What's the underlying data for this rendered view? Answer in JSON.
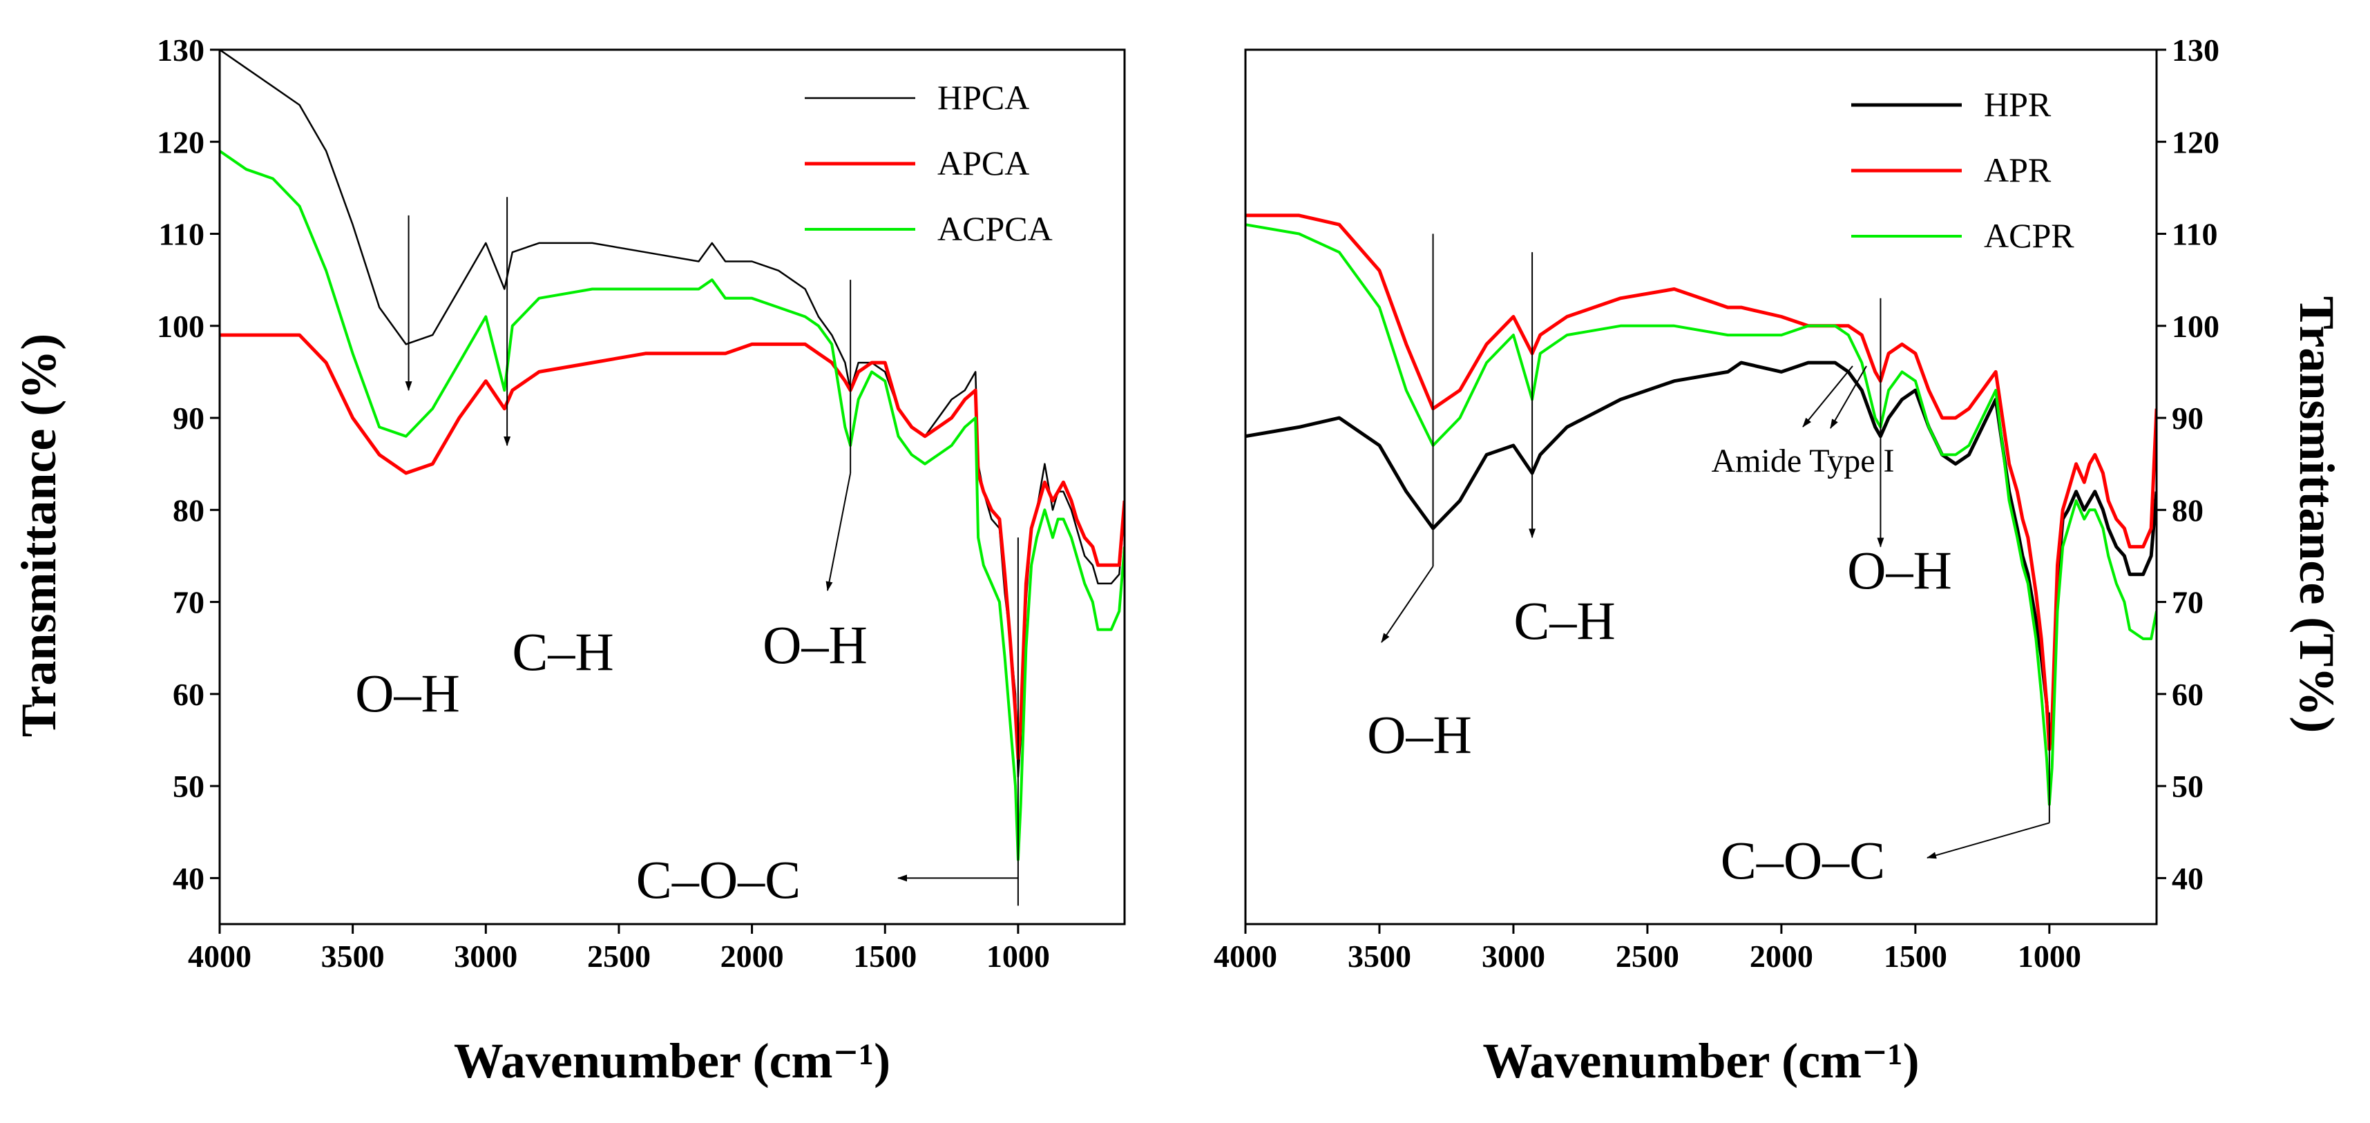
{
  "chart_data": [
    {
      "type": "line",
      "panel": "left",
      "title": "",
      "xlabel": "Wavenumber (cm⁻¹)",
      "ylabel": "Transmittance (%)",
      "xlim": [
        4000,
        600
      ],
      "ylim": [
        35,
        130
      ],
      "xticks": [
        "4000",
        "3500",
        "3000",
        "2500",
        "2000",
        "1500",
        "1000"
      ],
      "xtick_values": [
        4000,
        3500,
        3000,
        2500,
        2000,
        1500,
        1000
      ],
      "yticks": [
        "40",
        "50",
        "60",
        "70",
        "80",
        "90",
        "100",
        "110",
        "120",
        "130"
      ],
      "ytick_values": [
        40,
        50,
        60,
        70,
        80,
        90,
        100,
        110,
        120,
        130
      ],
      "legend_position": "top-right",
      "series": [
        {
          "name": "HPCA",
          "color": "#000000",
          "x": [
            4000,
            3900,
            3800,
            3700,
            3600,
            3500,
            3400,
            3300,
            3200,
            3100,
            3000,
            2930,
            2900,
            2800,
            2600,
            2400,
            2200,
            2150,
            2100,
            2000,
            1900,
            1800,
            1750,
            1700,
            1650,
            1630,
            1600,
            1550,
            1500,
            1450,
            1400,
            1350,
            1300,
            1250,
            1200,
            1160,
            1150,
            1130,
            1100,
            1070,
            1050,
            1030,
            1010,
            1000,
            990,
            970,
            950,
            930,
            900,
            870,
            850,
            830,
            800,
            780,
            750,
            720,
            700,
            650,
            620,
            600
          ],
          "values": [
            130,
            128,
            126,
            124,
            119,
            111,
            102,
            98,
            99,
            104,
            109,
            104,
            108,
            109,
            109,
            108,
            107,
            109,
            107,
            107,
            106,
            104,
            101,
            99,
            96,
            93,
            96,
            96,
            95,
            91,
            89,
            88,
            90,
            92,
            93,
            95,
            85,
            82,
            79,
            78,
            71,
            66,
            60,
            51,
            55,
            70,
            78,
            80,
            85,
            80,
            82,
            82,
            80,
            78,
            75,
            74,
            72,
            72,
            73,
            80
          ]
        },
        {
          "name": "APCA",
          "color": "#ff0000",
          "x": [
            4000,
            3900,
            3800,
            3700,
            3600,
            3500,
            3400,
            3300,
            3200,
            3100,
            3000,
            2930,
            2900,
            2800,
            2600,
            2400,
            2200,
            2150,
            2100,
            2000,
            1900,
            1800,
            1750,
            1700,
            1650,
            1630,
            1600,
            1550,
            1500,
            1450,
            1400,
            1350,
            1300,
            1250,
            1200,
            1160,
            1150,
            1130,
            1100,
            1070,
            1050,
            1030,
            1010,
            1000,
            990,
            970,
            950,
            930,
            900,
            870,
            850,
            830,
            800,
            780,
            750,
            720,
            700,
            650,
            620,
            600
          ],
          "values": [
            99,
            99,
            99,
            99,
            96,
            90,
            86,
            84,
            85,
            90,
            94,
            91,
            93,
            95,
            96,
            97,
            97,
            97,
            97,
            98,
            98,
            98,
            97,
            96,
            94,
            93,
            95,
            96,
            96,
            91,
            89,
            88,
            89,
            90,
            92,
            93,
            84,
            82,
            80,
            79,
            73,
            66,
            58,
            53,
            57,
            72,
            78,
            80,
            83,
            81,
            82,
            83,
            81,
            79,
            77,
            76,
            74,
            74,
            74,
            81
          ]
        },
        {
          "name": "ACPCA",
          "color": "#00ee00",
          "x": [
            4000,
            3900,
            3800,
            3700,
            3600,
            3500,
            3400,
            3300,
            3200,
            3100,
            3000,
            2930,
            2900,
            2800,
            2600,
            2400,
            2200,
            2150,
            2100,
            2000,
            1900,
            1800,
            1750,
            1700,
            1650,
            1630,
            1600,
            1550,
            1500,
            1450,
            1400,
            1350,
            1300,
            1250,
            1200,
            1160,
            1150,
            1130,
            1100,
            1070,
            1050,
            1030,
            1010,
            1000,
            990,
            970,
            950,
            930,
            900,
            870,
            850,
            830,
            800,
            780,
            750,
            720,
            700,
            650,
            620,
            600
          ],
          "values": [
            119,
            117,
            116,
            113,
            106,
            97,
            89,
            88,
            91,
            96,
            101,
            93,
            100,
            103,
            104,
            104,
            104,
            105,
            103,
            103,
            102,
            101,
            100,
            98,
            89,
            87,
            92,
            95,
            94,
            88,
            86,
            85,
            86,
            87,
            89,
            90,
            77,
            74,
            72,
            70,
            64,
            57,
            50,
            42,
            48,
            65,
            74,
            77,
            80,
            77,
            79,
            79,
            77,
            75,
            72,
            70,
            67,
            67,
            69,
            76
          ]
        }
      ],
      "annotations": [
        {
          "text": "O–H",
          "x": 3290
        },
        {
          "text": "C–H",
          "x": 2920
        },
        {
          "text": "O–H",
          "x": 1630
        },
        {
          "text": "C–O–C",
          "x": 1000
        }
      ]
    },
    {
      "type": "line",
      "panel": "right",
      "title": "",
      "xlabel": "Wavenumber (cm⁻¹)",
      "ylabel": "Transmittance (T%)",
      "xlim": [
        4000,
        600
      ],
      "ylim": [
        35,
        130
      ],
      "xticks": [
        "4000",
        "3500",
        "3000",
        "2500",
        "2000",
        "1500",
        "1000"
      ],
      "xtick_values": [
        4000,
        3500,
        3000,
        2500,
        2000,
        1500,
        1000
      ],
      "yticks": [
        "40",
        "50",
        "60",
        "70",
        "80",
        "90",
        "100",
        "110",
        "120",
        "130"
      ],
      "ytick_values": [
        40,
        50,
        60,
        70,
        80,
        90,
        100,
        110,
        120,
        130
      ],
      "legend_position": "top-right",
      "series": [
        {
          "name": "HPR",
          "color": "#000000",
          "x": [
            4000,
            3800,
            3650,
            3500,
            3400,
            3300,
            3200,
            3100,
            3000,
            2930,
            2900,
            2800,
            2600,
            2400,
            2200,
            2150,
            2000,
            1900,
            1800,
            1750,
            1700,
            1650,
            1630,
            1600,
            1550,
            1500,
            1450,
            1400,
            1350,
            1300,
            1250,
            1200,
            1150,
            1120,
            1100,
            1080,
            1050,
            1030,
            1010,
            1000,
            990,
            970,
            950,
            930,
            900,
            870,
            850,
            830,
            800,
            780,
            750,
            720,
            700,
            650,
            620,
            600
          ],
          "values": [
            88,
            89,
            90,
            87,
            82,
            78,
            81,
            86,
            87,
            84,
            86,
            89,
            92,
            94,
            95,
            96,
            95,
            96,
            96,
            95,
            93,
            89,
            88,
            90,
            92,
            93,
            89,
            86,
            85,
            86,
            89,
            92,
            82,
            78,
            75,
            73,
            68,
            64,
            59,
            55,
            56,
            72,
            79,
            80,
            82,
            80,
            81,
            82,
            80,
            78,
            76,
            75,
            73,
            73,
            75,
            82
          ]
        },
        {
          "name": "APR",
          "color": "#ff0000",
          "x": [
            4000,
            3800,
            3650,
            3500,
            3400,
            3300,
            3200,
            3100,
            3000,
            2930,
            2900,
            2800,
            2600,
            2400,
            2200,
            2150,
            2000,
            1900,
            1800,
            1750,
            1700,
            1650,
            1630,
            1600,
            1550,
            1500,
            1450,
            1400,
            1350,
            1300,
            1250,
            1200,
            1150,
            1120,
            1100,
            1080,
            1050,
            1030,
            1010,
            1000,
            990,
            970,
            950,
            930,
            900,
            870,
            850,
            830,
            800,
            780,
            750,
            720,
            700,
            650,
            620,
            600
          ],
          "values": [
            112,
            112,
            111,
            106,
            98,
            91,
            93,
            98,
            101,
            97,
            99,
            101,
            103,
            104,
            102,
            102,
            101,
            100,
            100,
            100,
            99,
            95,
            94,
            97,
            98,
            97,
            93,
            90,
            90,
            91,
            93,
            95,
            85,
            82,
            79,
            77,
            71,
            66,
            59,
            54,
            57,
            74,
            80,
            82,
            85,
            83,
            85,
            86,
            84,
            81,
            79,
            78,
            76,
            76,
            78,
            91
          ]
        },
        {
          "name": "ACPR",
          "color": "#00ee00",
          "x": [
            4000,
            3800,
            3650,
            3500,
            3400,
            3300,
            3200,
            3100,
            3000,
            2930,
            2900,
            2800,
            2600,
            2400,
            2200,
            2150,
            2000,
            1900,
            1800,
            1750,
            1700,
            1650,
            1630,
            1600,
            1550,
            1500,
            1450,
            1400,
            1350,
            1300,
            1250,
            1200,
            1150,
            1120,
            1100,
            1080,
            1050,
            1030,
            1010,
            1000,
            990,
            970,
            950,
            930,
            900,
            870,
            850,
            830,
            800,
            780,
            750,
            720,
            700,
            650,
            620,
            600
          ],
          "values": [
            111,
            110,
            108,
            102,
            93,
            87,
            90,
            96,
            99,
            92,
            97,
            99,
            100,
            100,
            99,
            99,
            99,
            100,
            100,
            99,
            96,
            90,
            89,
            93,
            95,
            94,
            89,
            86,
            86,
            87,
            90,
            93,
            81,
            77,
            74,
            72,
            66,
            60,
            53,
            48,
            52,
            69,
            76,
            78,
            81,
            79,
            80,
            80,
            78,
            75,
            72,
            70,
            67,
            66,
            66,
            69
          ]
        }
      ],
      "annotations": [
        {
          "text": "O–H",
          "x": 3300
        },
        {
          "text": "C–H",
          "x": 2930
        },
        {
          "text": "Amide Type I",
          "x": 1720
        },
        {
          "text": "O–H",
          "x": 1630
        },
        {
          "text": "C–O–C",
          "x": 1000
        }
      ]
    }
  ]
}
